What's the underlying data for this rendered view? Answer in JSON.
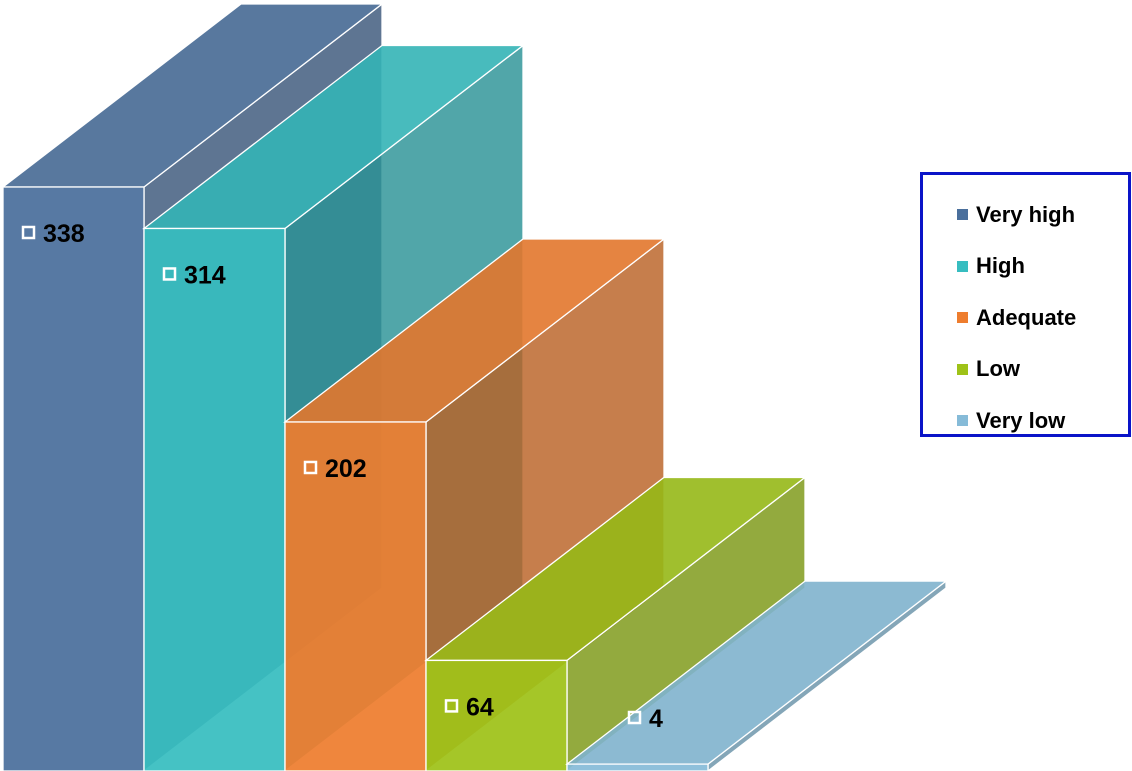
{
  "chart_data": {
    "type": "bar",
    "categories": [
      "Very high",
      "High",
      "Adequate",
      "Low",
      "Very low"
    ],
    "values": [
      338,
      314,
      202,
      64,
      4
    ],
    "colors": [
      "#4a6f9c",
      "#37bdc0",
      "#ee7d2e",
      "#9ec218",
      "#86bbd8"
    ],
    "legend_position": "right",
    "grid": false
  },
  "legend": {
    "items": [
      {
        "label": "Very high",
        "color": "#4a6f9c"
      },
      {
        "label": "High",
        "color": "#37bdc0"
      },
      {
        "label": "Adequate",
        "color": "#ee7d2e"
      },
      {
        "label": "Low",
        "color": "#9ec218"
      },
      {
        "label": "Very low",
        "color": "#86bbd8"
      }
    ]
  }
}
